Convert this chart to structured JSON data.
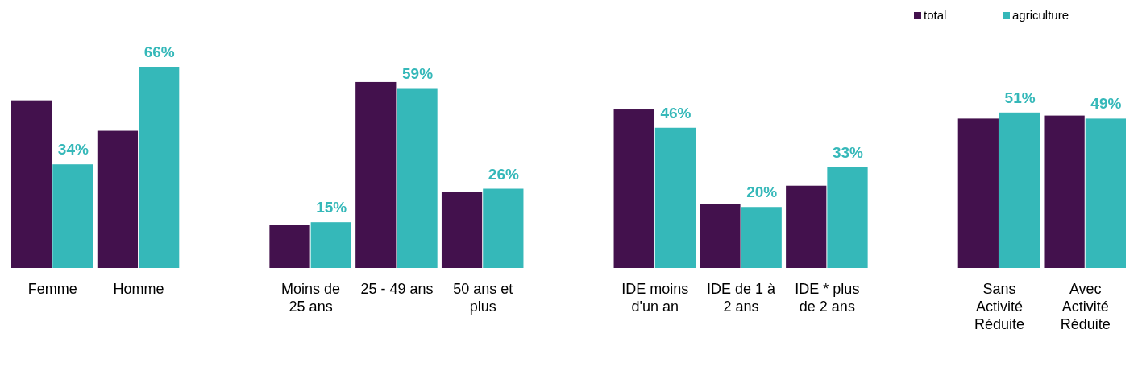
{
  "chart_data": {
    "type": "bar",
    "categories": [
      "Femme",
      "Homme",
      null,
      "Moins de 25 ans",
      "25 - 49 ans",
      "50 ans et plus",
      null,
      "IDE moins d'un an",
      "IDE de 1 à 2 ans",
      "IDE * plus de 2 ans",
      null,
      "Sans Activité Réduite",
      "Avec Activité Réduite"
    ],
    "series": [
      {
        "name": "total",
        "color": "#43114d",
        "values": [
          55,
          45,
          null,
          14,
          61,
          25,
          null,
          52,
          21,
          27,
          null,
          49,
          50
        ]
      },
      {
        "name": "agriculture",
        "color": "#35b8b9",
        "values": [
          34,
          66,
          null,
          15,
          59,
          26,
          null,
          46,
          20,
          33,
          null,
          51,
          49
        ],
        "value_labels": [
          "34%",
          "66%",
          null,
          "15%",
          "59%",
          "26%",
          null,
          "46%",
          "20%",
          "33%",
          null,
          "51%",
          "49%"
        ]
      }
    ],
    "legend": "top right"
  }
}
